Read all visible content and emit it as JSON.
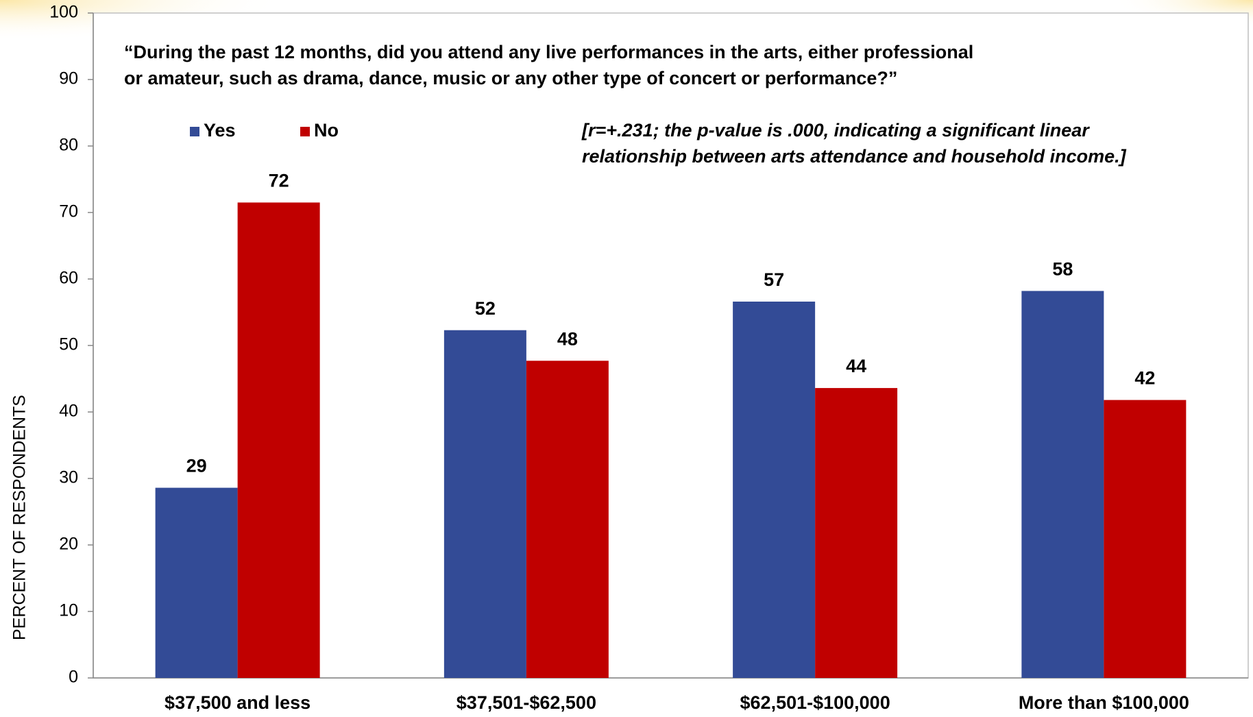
{
  "chart_data": {
    "type": "bar",
    "title": [
      "“During the past 12 months, did you attend any live performances in the arts, either professional",
      "or amateur, such as drama, dance, music or any other type of concert or performance?”"
    ],
    "annotation": [
      "[r=+.231; the p-value is .000, indicating a significant linear",
      "relationship between arts attendance and household income.]"
    ],
    "y_label": "PERCENT OF RESPONDENTS",
    "categories": [
      "$37,500 and less",
      "$37,501-$62,500",
      "$62,501-$100,000",
      "More than $100,000"
    ],
    "series": [
      {
        "name": "Yes",
        "color": "#334b96",
        "values": [
          28.6,
          52.3,
          56.6,
          58.2
        ],
        "value_labels": [
          "29",
          "52",
          "57",
          "58"
        ]
      },
      {
        "name": "No",
        "color": "#c00000",
        "values": [
          71.5,
          47.7,
          43.6,
          41.8
        ],
        "value_labels": [
          "72",
          "48",
          "44",
          "42"
        ]
      }
    ],
    "ylim": [
      0,
      100
    ],
    "yticks": [
      0,
      10,
      20,
      30,
      40,
      50,
      60,
      70,
      80,
      90,
      100
    ],
    "legend": "top-left"
  }
}
